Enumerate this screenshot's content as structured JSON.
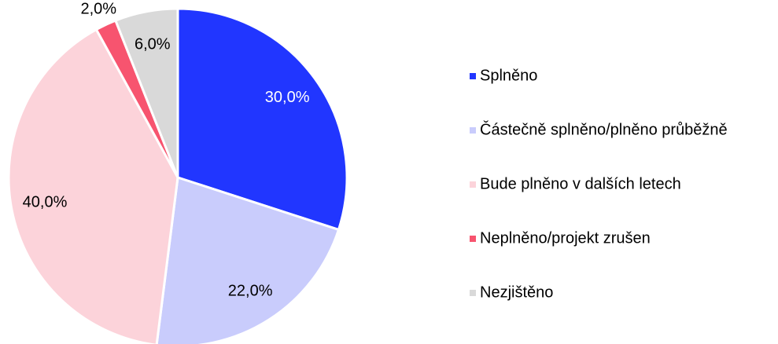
{
  "chart_data": {
    "type": "pie",
    "categories": [
      "Splněno",
      "Částečně splněno/plněno průběžně",
      "Bude plněno v dalších letech",
      "Neplněno/projekt zrušen",
      "Nezjištěno"
    ],
    "values": [
      30,
      22,
      40,
      2,
      6
    ],
    "value_labels": [
      "30,0%",
      "22,0%",
      "40,0%",
      "2,0%",
      "6,0%"
    ],
    "colors": [
      "#2136ff",
      "#c9ccfc",
      "#fcd3da",
      "#f7546f",
      "#d9d9d9"
    ],
    "legend": "right"
  }
}
